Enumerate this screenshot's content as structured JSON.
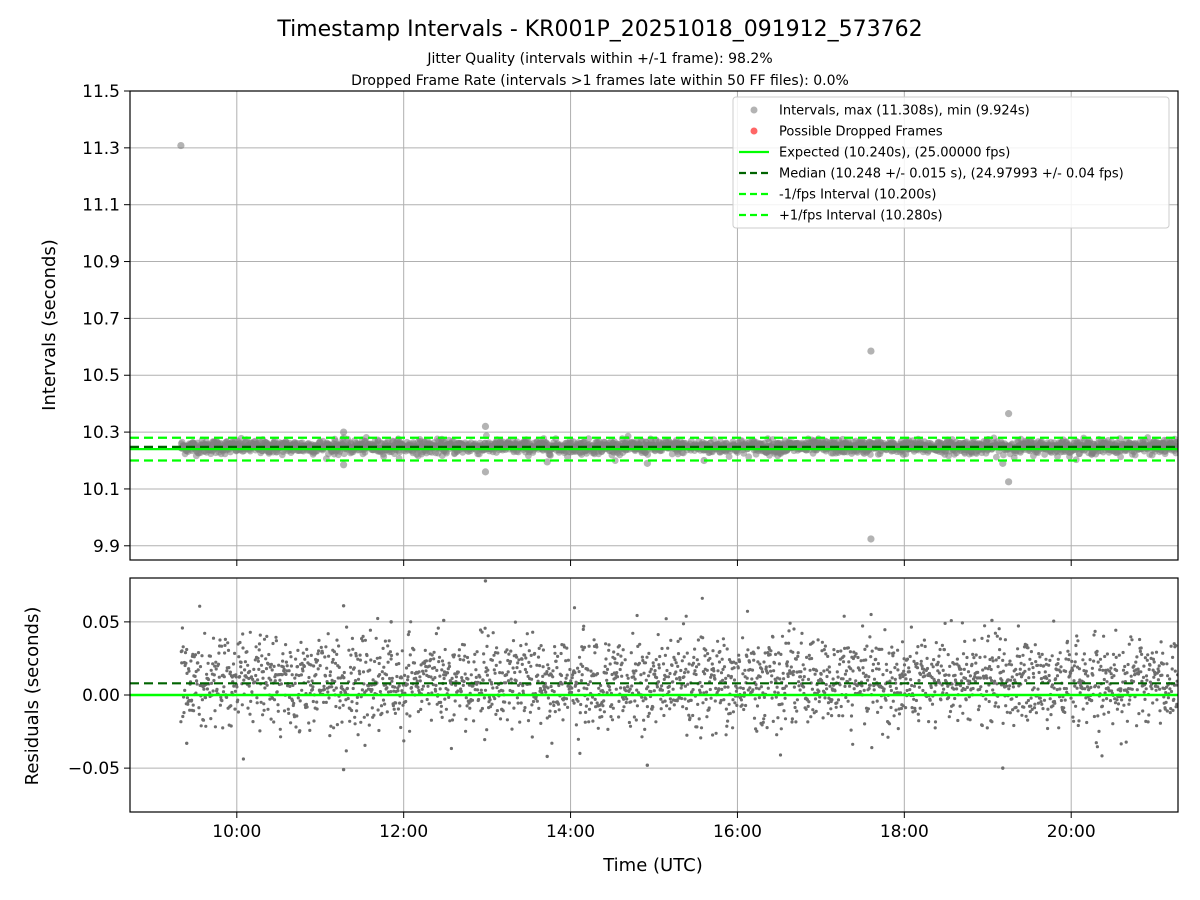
{
  "figure": {
    "title": "Timestamp Intervals - KR001P_20251018_091912_573762",
    "subtitle1": "Jitter Quality (intervals within +/-1 frame): 98.2%",
    "subtitle2": "Dropped Frame Rate (intervals >1 frames late within 50 FF files): 0.0%"
  },
  "colors": {
    "points": "#808080",
    "dropped": "#ff0000",
    "expected": "#00ff00",
    "median": "#006400",
    "fps_band": "#00ff00",
    "grid": "#b0b0b0"
  },
  "chart_data": [
    {
      "type": "scatter",
      "name": "intervals",
      "title": "Timestamp Intervals - KR001P_20251018_091912_573762",
      "xlabel": "",
      "ylabel": "Intervals (seconds)",
      "xlim_hours": [
        8.72,
        21.28
      ],
      "ylim": [
        9.85,
        11.5
      ],
      "yticks": [
        9.9,
        10.1,
        10.3,
        10.5,
        10.7,
        10.9,
        11.1,
        11.3,
        11.5
      ],
      "ytick_labels": [
        "9.9",
        "10.1",
        "10.3",
        "10.5",
        "10.7",
        "10.9",
        "11.1",
        "11.3",
        "11.5"
      ],
      "xticks_hours": [
        10,
        12,
        14,
        16,
        18,
        20
      ],
      "xtick_labels": [
        "10:00",
        "12:00",
        "14:00",
        "16:00",
        "18:00",
        "20:00"
      ],
      "grid": true,
      "start_hour": 9.33,
      "end_hour": 21.28,
      "expected": 10.24,
      "median": 10.248,
      "minus_one_fps": 10.2,
      "plus_one_fps": 10.28,
      "outliers": [
        {
          "x": 9.33,
          "y": 11.308
        },
        {
          "x": 17.6,
          "y": 10.585
        },
        {
          "x": 17.6,
          "y": 9.924
        },
        {
          "x": 19.25,
          "y": 10.365
        },
        {
          "x": 19.25,
          "y": 10.125
        },
        {
          "x": 19.18,
          "y": 10.19
        },
        {
          "x": 12.98,
          "y": 10.32
        },
        {
          "x": 12.98,
          "y": 10.16
        },
        {
          "x": 11.28,
          "y": 10.3
        },
        {
          "x": 11.28,
          "y": 10.185
        },
        {
          "x": 14.92,
          "y": 10.19
        },
        {
          "x": 13.72,
          "y": 10.195
        },
        {
          "x": 15.6,
          "y": 10.2
        }
      ],
      "legend_position": "upper-right",
      "legend": [
        {
          "label": "Intervals, max (11.308s), min (9.924s)",
          "kind": "point-gray"
        },
        {
          "label": "Possible Dropped Frames",
          "kind": "point-red"
        },
        {
          "label": "Expected (10.240s), (25.00000 fps)",
          "kind": "line-solid-green"
        },
        {
          "label": "Median (10.248 +/- 0.015 s), (24.97993 +/- 0.04 fps)",
          "kind": "line-dashed-darkgreen"
        },
        {
          "label": "-1/fps Interval (10.200s)",
          "kind": "line-dashed-green"
        },
        {
          "label": "+1/fps Interval (10.280s)",
          "kind": "line-dashed-green"
        }
      ]
    },
    {
      "type": "scatter",
      "name": "residuals",
      "xlabel": "Time (UTC)",
      "ylabel": "Residuals (seconds)",
      "xlim_hours": [
        8.72,
        21.28
      ],
      "ylim": [
        -0.08,
        0.08
      ],
      "yticks": [
        -0.05,
        0.0,
        0.05
      ],
      "ytick_labels": [
        "−0.05",
        "0.00",
        "0.05"
      ],
      "xticks_hours": [
        10,
        12,
        14,
        16,
        18,
        20
      ],
      "xtick_labels": [
        "10:00",
        "12:00",
        "14:00",
        "16:00",
        "18:00",
        "20:00"
      ],
      "grid": true,
      "zero_line": 0.0,
      "median_residual": 0.008,
      "mean_residual": 0.009,
      "std_residual": 0.015,
      "outliers": [
        {
          "x": 12.98,
          "y": 0.078
        },
        {
          "x": 11.28,
          "y": 0.061
        },
        {
          "x": 11.28,
          "y": -0.051
        },
        {
          "x": 19.18,
          "y": -0.05
        },
        {
          "x": 14.92,
          "y": -0.048
        },
        {
          "x": 13.72,
          "y": -0.042
        },
        {
          "x": 9.4,
          "y": -0.033
        },
        {
          "x": 19.05,
          "y": 0.051
        },
        {
          "x": 12.48,
          "y": 0.051
        },
        {
          "x": 11.85,
          "y": 0.05
        }
      ]
    }
  ]
}
